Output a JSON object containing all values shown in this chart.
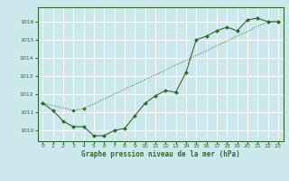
{
  "title": "Graphe pression niveau de la mer (hPa)",
  "bg_color": "#cce8ec",
  "grid_color": "#ffffff",
  "line_color": "#2d6a2d",
  "marker_color": "#2d6a2d",
  "xlim": [
    -0.5,
    23.5
  ],
  "ylim": [
    1009.4,
    1016.8
  ],
  "xticks": [
    0,
    1,
    2,
    3,
    4,
    5,
    6,
    7,
    8,
    9,
    10,
    11,
    12,
    13,
    14,
    15,
    16,
    17,
    18,
    19,
    20,
    21,
    22,
    23
  ],
  "yticks": [
    1010,
    1011,
    1012,
    1013,
    1014,
    1015,
    1016
  ],
  "series1_x": [
    0,
    1,
    2,
    3,
    4,
    5,
    6,
    7,
    8,
    9,
    10,
    11,
    12,
    13,
    14,
    15,
    16,
    17,
    18,
    19,
    20,
    21,
    22,
    23
  ],
  "series1_y": [
    1011.5,
    1011.1,
    1010.5,
    1010.2,
    1010.2,
    1009.7,
    1009.7,
    1010.0,
    1010.1,
    1010.8,
    1011.5,
    1011.9,
    1012.2,
    1012.1,
    1013.2,
    1015.0,
    1015.2,
    1015.5,
    1015.7,
    1015.5,
    1016.1,
    1016.2,
    1016.0,
    1016.0
  ],
  "series2_x": [
    0,
    3,
    4,
    22,
    23
  ],
  "series2_y": [
    1011.5,
    1011.1,
    1011.2,
    1016.0,
    1016.0
  ]
}
